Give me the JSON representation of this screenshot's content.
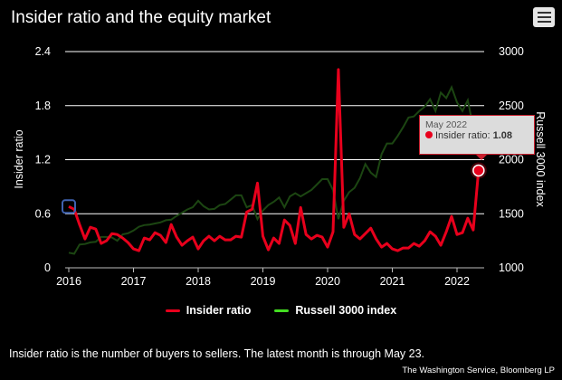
{
  "header": {
    "title": "Insider ratio and the equity market",
    "menu_icon": "hamburger-menu-icon"
  },
  "chart_data": {
    "type": "line",
    "title": "Insider ratio and the equity market",
    "xlabel": "",
    "ylabel": "Insider ratio",
    "y2label": "Russell 3000 index",
    "x_start": "2016-01",
    "x_ticks": [
      "2016",
      "2017",
      "2018",
      "2019",
      "2020",
      "2021",
      "2022"
    ],
    "ylim": [
      0,
      2.4
    ],
    "y_ticks": [
      "0",
      "0.6",
      "1.2",
      "1.8",
      "2.4"
    ],
    "y2lim": [
      1000,
      3000
    ],
    "y2_ticks": [
      "1000",
      "1500",
      "2000",
      "2500",
      "3000"
    ],
    "grid": true,
    "legend_placement": "bottom",
    "series": [
      {
        "name": "Insider ratio",
        "axis": "left",
        "color": "#e8001c",
        "values": [
          0.68,
          0.65,
          0.48,
          0.32,
          0.45,
          0.43,
          0.27,
          0.3,
          0.38,
          0.37,
          0.33,
          0.28,
          0.21,
          0.19,
          0.33,
          0.31,
          0.39,
          0.36,
          0.28,
          0.48,
          0.34,
          0.25,
          0.3,
          0.34,
          0.21,
          0.3,
          0.35,
          0.3,
          0.35,
          0.31,
          0.31,
          0.35,
          0.34,
          0.62,
          0.65,
          0.94,
          0.35,
          0.2,
          0.33,
          0.27,
          0.53,
          0.47,
          0.27,
          0.67,
          0.37,
          0.32,
          0.36,
          0.34,
          0.23,
          0.4,
          2.2,
          0.45,
          0.6,
          0.37,
          0.32,
          0.38,
          0.44,
          0.32,
          0.23,
          0.27,
          0.21,
          0.19,
          0.22,
          0.22,
          0.27,
          0.24,
          0.3,
          0.4,
          0.35,
          0.25,
          0.4,
          0.57,
          0.37,
          0.39,
          0.55,
          0.42,
          1.08
        ]
      },
      {
        "name": "Russell 3000 index",
        "axis": "right",
        "color": "#44dd22",
        "dim_color": "#1c4612",
        "values": [
          1140,
          1130,
          1215,
          1220,
          1235,
          1240,
          1285,
          1285,
          1280,
          1250,
          1310,
          1320,
          1345,
          1380,
          1395,
          1400,
          1410,
          1420,
          1440,
          1445,
          1480,
          1510,
          1540,
          1560,
          1620,
          1570,
          1540,
          1545,
          1580,
          1590,
          1630,
          1670,
          1670,
          1560,
          1580,
          1450,
          1530,
          1580,
          1610,
          1650,
          1560,
          1660,
          1690,
          1660,
          1690,
          1720,
          1770,
          1820,
          1820,
          1720,
          1450,
          1620,
          1700,
          1740,
          1830,
          1960,
          1880,
          1840,
          2050,
          2150,
          2150,
          2220,
          2300,
          2390,
          2400,
          2450,
          2490,
          2560,
          2450,
          2620,
          2570,
          2670,
          2530,
          2450,
          2550,
          2300,
          2230
        ]
      }
    ],
    "tooltip": {
      "month": "May 2022",
      "label": "Insider ratio:",
      "value": "1.08"
    }
  },
  "legend": {
    "red_label": "Insider ratio",
    "green_label": "Russell 3000 index"
  },
  "footer": {
    "note": "Insider ratio is the number of buyers to sellers. The latest month is through May 23.",
    "credit": "The Washington Service, Bloomberg LP"
  }
}
